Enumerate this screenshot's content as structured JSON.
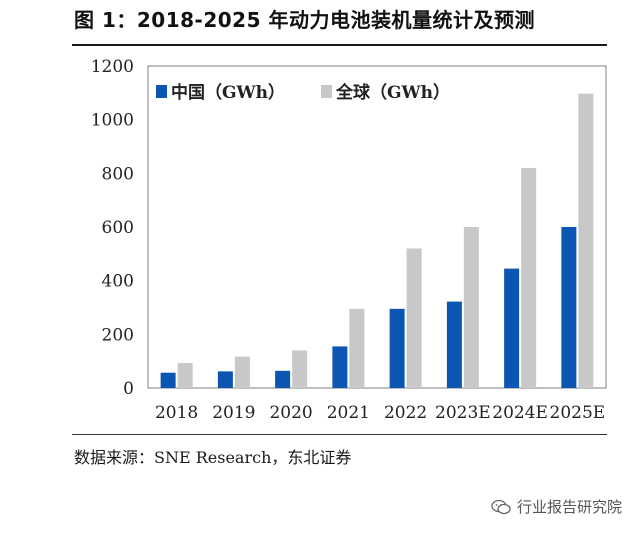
{
  "header": {
    "title": "图 1：2018-2025 年动力电池装机量统计及预测"
  },
  "footer": {
    "source": "数据来源：SNE Research，东北证券",
    "watermark": "行业报告研究院"
  },
  "colors": {
    "china": "#0b56b3",
    "global": "#c8c8c8",
    "axis": "#7f7f7f"
  },
  "chart_data": {
    "type": "bar",
    "title": "",
    "xlabel": "",
    "ylabel": "",
    "ylim": [
      0,
      1200
    ],
    "yticks": [
      0,
      200,
      400,
      600,
      800,
      1000,
      1200
    ],
    "categories": [
      "2018",
      "2019",
      "2020",
      "2021",
      "2022",
      "2023E",
      "2024E",
      "2025E"
    ],
    "legend_position": "top-left",
    "series": [
      {
        "name": "中国（GWh）",
        "color_key": "china",
        "values": [
          57,
          62,
          64,
          155,
          295,
          322,
          445,
          600
        ]
      },
      {
        "name": "全球（GWh）",
        "color_key": "global",
        "values": [
          93,
          117,
          140,
          295,
          520,
          600,
          820,
          1097
        ]
      }
    ]
  }
}
